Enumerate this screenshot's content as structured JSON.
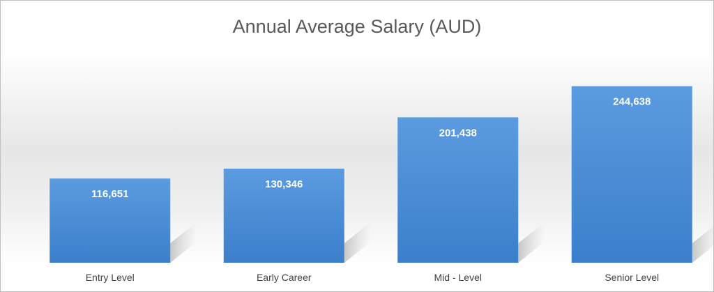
{
  "chart_data": {
    "type": "bar",
    "title": "Annual Average Salary (AUD)",
    "xlabel": "",
    "ylabel": "",
    "categories": [
      "Entry Level",
      "Early Career",
      "Mid - Level",
      "Senior Level"
    ],
    "values": [
      116651,
      130346,
      201438,
      244638
    ],
    "data_labels": [
      "116,651",
      "130,346",
      "201,438",
      "244,638"
    ],
    "bar_color": "#4a8fd6",
    "bar_color_dark": "#3a7cc8",
    "grid": false,
    "legend": "none"
  }
}
